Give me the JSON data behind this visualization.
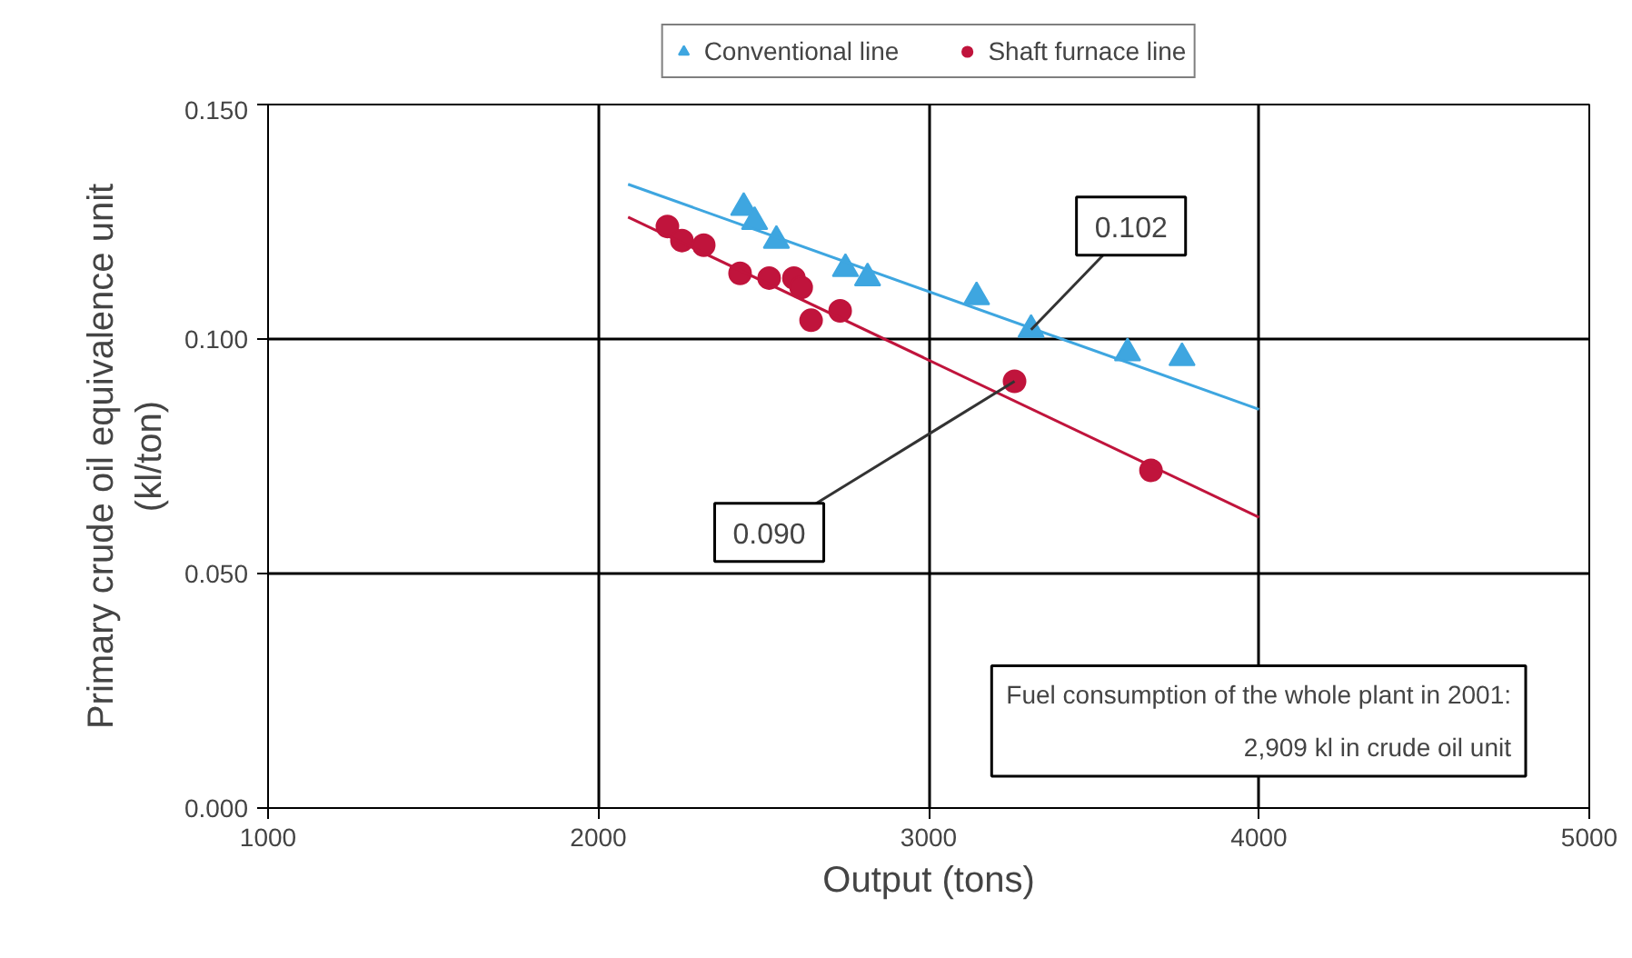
{
  "chart_data": {
    "type": "scatter",
    "xlabel": "Output (tons)",
    "ylabel": "Primary crude oil equivalence unit\n(kl/ton)",
    "xlim": [
      1000,
      5000
    ],
    "xticks": [
      1000,
      2000,
      3000,
      4000,
      5000
    ],
    "ylim": [
      0,
      0.15
    ],
    "yticks": [
      {
        "value": 0,
        "label": "0.000"
      },
      {
        "value": 0.05,
        "label": "0.050"
      },
      {
        "value": 0.1,
        "label": "0.100"
      },
      {
        "value": 0.15,
        "label": "0.150"
      }
    ],
    "grid": true,
    "legend": "top",
    "series": [
      {
        "name": "Conventional line",
        "color": "#3ea6e0",
        "marker": "triangle",
        "x": [
          2440,
          2473,
          2539,
          2748,
          2815,
          3145,
          3310,
          3602,
          3767
        ],
        "values": [
          0.128,
          0.125,
          0.121,
          0.115,
          0.113,
          0.109,
          0.102,
          0.097,
          0.096
        ]
      },
      {
        "name": "Shaft furnace line",
        "color": "#c0143c",
        "marker": "circle",
        "x": [
          2209,
          2253,
          2319,
          2429,
          2517,
          2592,
          2614,
          2644,
          2732,
          3260,
          3673
        ],
        "values": [
          0.124,
          0.121,
          0.12,
          0.114,
          0.113,
          0.113,
          0.111,
          0.104,
          0.106,
          0.091,
          0.072
        ]
      },
      {
        "type": "line",
        "color": "#3ea6e0",
        "x": [
          2090,
          4000
        ],
        "values": [
          0.133,
          0.085
        ]
      },
      {
        "type": "line",
        "color": "#c0143c",
        "x": [
          2090,
          4000
        ],
        "values": [
          0.126,
          0.062
        ]
      }
    ],
    "annotations": [
      {
        "text": "0.102",
        "x": 3310,
        "y": 0.102
      },
      {
        "text": "0.090",
        "x": 3260,
        "y": 0.091
      },
      "Fuel consumption of the whole plant in 2001:\n2,909 kl in crude oil unit"
    ]
  }
}
